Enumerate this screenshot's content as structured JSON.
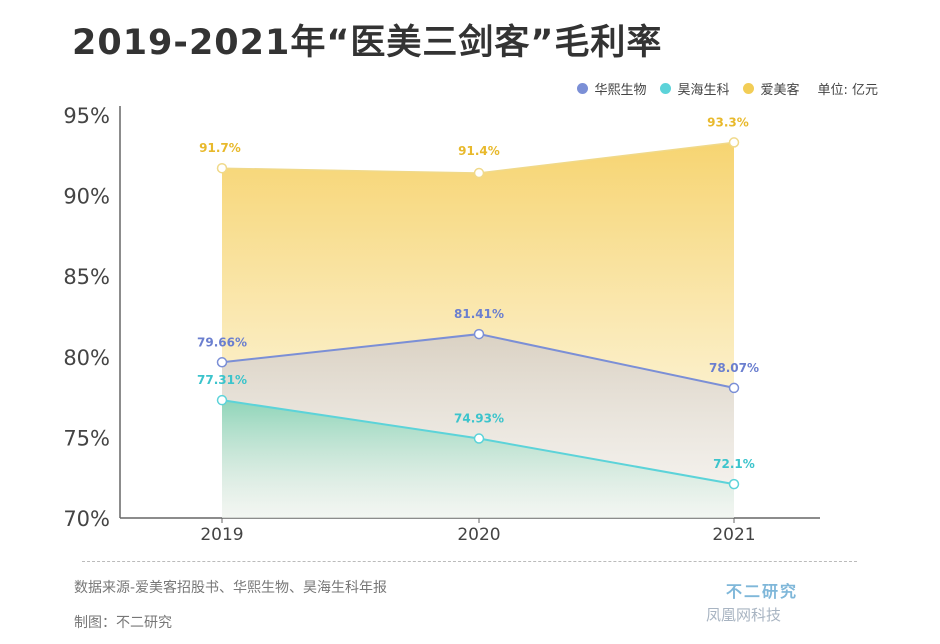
{
  "title": "2019-2021年“医美三剑客”毛利率",
  "legend": {
    "items": [
      {
        "name": "华熙生物",
        "color": "#7b8fd6"
      },
      {
        "name": "昊海生科",
        "color": "#5cd3d9"
      },
      {
        "name": "爱美客",
        "color": "#f2cd56"
      }
    ],
    "unit": "单位: 亿元"
  },
  "chart_data": {
    "type": "area",
    "x": [
      "2019",
      "2020",
      "2021"
    ],
    "ylim": [
      70,
      95
    ],
    "yticks": [
      "70%",
      "75%",
      "80%",
      "85%",
      "90%",
      "95%"
    ],
    "yticks_values": [
      70,
      75,
      80,
      85,
      90,
      95
    ],
    "series": [
      {
        "name": "爱美客",
        "values": [
          91.7,
          91.4,
          93.3
        ],
        "labels": [
          "91.7%",
          "91.4%",
          "93.3%"
        ],
        "color": "#f2cd56"
      },
      {
        "name": "华熙生物",
        "values": [
          79.66,
          81.41,
          78.07
        ],
        "labels": [
          "79.66%",
          "81.41%",
          "78.07%"
        ],
        "color": "#7b8fd6"
      },
      {
        "name": "昊海生科",
        "values": [
          77.31,
          74.93,
          72.1
        ],
        "labels": [
          "77.31%",
          "74.93%",
          "72.1%"
        ],
        "color": "#5cd3d9"
      }
    ],
    "grid": false
  },
  "footer": {
    "source": "数据来源-爱美客招股书、华熙生物、昊海生科年报",
    "maker": "制图：不二研究",
    "brand": "不二研究",
    "watermark": "凤凰网科技"
  }
}
